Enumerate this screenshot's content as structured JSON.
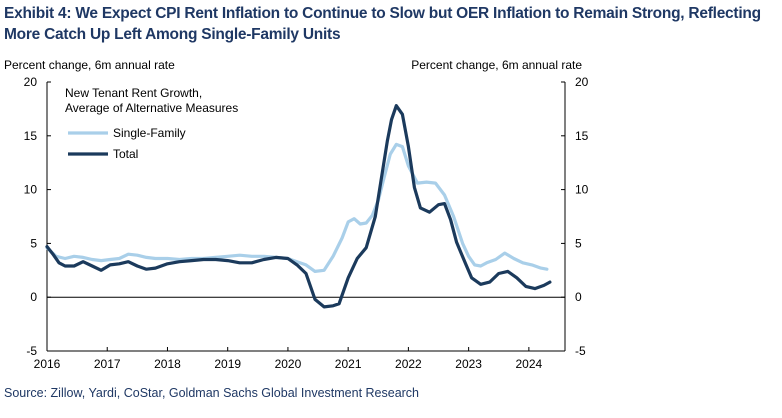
{
  "title_line1": "Exhibit 4: We Expect CPI Rent Inflation to Continue to Slow but OER Inflation to Remain Strong, Reflecting",
  "title_line2": "More Catch Up Left Among Single-Family Units",
  "source": "Source: Zillow, Yardi, CoStar, Goldman Sachs Global Investment Research",
  "chart_data": {
    "type": "line",
    "ylabel_left": "Percent change, 6m annual rate",
    "ylabel_right": "Percent change, 6m annual rate",
    "legend_title_line1": "New Tenant Rent Growth,",
    "legend_title_line2": "Average of Alternative Measures",
    "legend_placement": "top-left",
    "grid": false,
    "xlim": [
      2016,
      2024.6
    ],
    "ylim": [
      -5,
      20
    ],
    "x_ticks": [
      "2016",
      "2017",
      "2018",
      "2019",
      "2020",
      "2021",
      "2022",
      "2023",
      "2024"
    ],
    "y_ticks": [
      "-5",
      "0",
      "5",
      "10",
      "15",
      "20"
    ],
    "colors": {
      "Single-Family": "#a9cfe9",
      "Total": "#1b3a5c"
    },
    "series": [
      {
        "name": "Single-Family",
        "x": [
          2016.0,
          2016.15,
          2016.3,
          2016.45,
          2016.6,
          2016.75,
          2016.9,
          2017.05,
          2017.2,
          2017.35,
          2017.5,
          2017.65,
          2017.8,
          2018.0,
          2018.2,
          2018.4,
          2018.6,
          2018.8,
          2019.0,
          2019.2,
          2019.4,
          2019.6,
          2019.8,
          2020.0,
          2020.15,
          2020.3,
          2020.45,
          2020.6,
          2020.75,
          2020.9,
          2021.0,
          2021.1,
          2021.2,
          2021.3,
          2021.4,
          2021.5,
          2021.6,
          2021.7,
          2021.8,
          2021.9,
          2022.0,
          2022.15,
          2022.3,
          2022.45,
          2022.6,
          2022.75,
          2022.9,
          2023.0,
          2023.1,
          2023.2,
          2023.3,
          2023.45,
          2023.6,
          2023.75,
          2023.9,
          2024.05,
          2024.2,
          2024.3
        ],
        "values": [
          4.6,
          3.8,
          3.6,
          3.8,
          3.7,
          3.5,
          3.4,
          3.5,
          3.6,
          4.0,
          3.9,
          3.7,
          3.6,
          3.6,
          3.5,
          3.6,
          3.6,
          3.7,
          3.8,
          3.9,
          3.8,
          3.8,
          3.7,
          3.6,
          3.3,
          3.0,
          2.4,
          2.5,
          3.8,
          5.5,
          7.0,
          7.3,
          6.8,
          6.9,
          7.6,
          9.0,
          11.2,
          13.3,
          14.2,
          14.0,
          12.2,
          10.6,
          10.7,
          10.6,
          9.5,
          7.5,
          5.0,
          3.8,
          3.0,
          2.9,
          3.2,
          3.5,
          4.1,
          3.6,
          3.2,
          3.0,
          2.7,
          2.6
        ]
      },
      {
        "name": "Total",
        "x": [
          2016.0,
          2016.1,
          2016.2,
          2016.3,
          2016.45,
          2016.6,
          2016.75,
          2016.9,
          2017.05,
          2017.2,
          2017.35,
          2017.5,
          2017.65,
          2017.8,
          2018.0,
          2018.2,
          2018.4,
          2018.6,
          2018.8,
          2019.0,
          2019.2,
          2019.4,
          2019.6,
          2019.8,
          2020.0,
          2020.15,
          2020.3,
          2020.45,
          2020.6,
          2020.75,
          2020.85,
          2021.0,
          2021.15,
          2021.3,
          2021.45,
          2021.55,
          2021.65,
          2021.72,
          2021.8,
          2021.9,
          2022.0,
          2022.1,
          2022.2,
          2022.35,
          2022.5,
          2022.6,
          2022.7,
          2022.8,
          2022.95,
          2023.05,
          2023.2,
          2023.35,
          2023.5,
          2023.65,
          2023.8,
          2023.95,
          2024.1,
          2024.25,
          2024.35
        ],
        "values": [
          4.7,
          4.0,
          3.2,
          2.9,
          2.9,
          3.3,
          2.9,
          2.5,
          3.0,
          3.1,
          3.3,
          2.9,
          2.6,
          2.7,
          3.1,
          3.3,
          3.4,
          3.5,
          3.5,
          3.4,
          3.2,
          3.2,
          3.5,
          3.7,
          3.6,
          3.0,
          2.2,
          -0.2,
          -0.9,
          -0.8,
          -0.6,
          1.8,
          3.6,
          4.6,
          7.5,
          11.0,
          14.5,
          16.5,
          17.8,
          17.0,
          14.0,
          10.2,
          8.3,
          7.9,
          8.6,
          8.7,
          7.2,
          5.1,
          3.1,
          1.8,
          1.2,
          1.4,
          2.2,
          2.4,
          1.8,
          1.0,
          0.8,
          1.1,
          1.4
        ]
      }
    ]
  }
}
